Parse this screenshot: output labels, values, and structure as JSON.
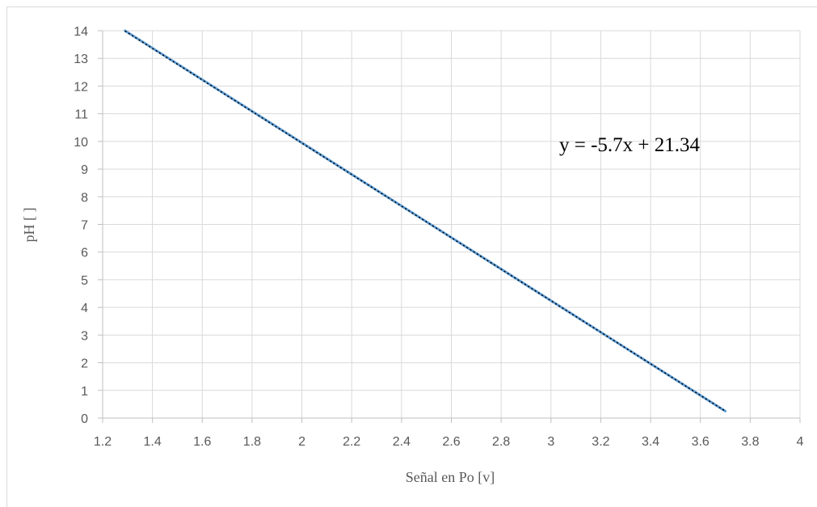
{
  "chart_data": {
    "type": "line",
    "title": "",
    "xlabel": "Señal en Po [v]",
    "ylabel": "pH [ ]",
    "xlim": [
      1.2,
      4
    ],
    "ylim": [
      0,
      14
    ],
    "x_ticks": [
      "1.2",
      "1.4",
      "1.6",
      "1.8",
      "2",
      "2.2",
      "2.4",
      "2.6",
      "2.8",
      "3",
      "3.2",
      "3.4",
      "3.6",
      "3.8",
      "4"
    ],
    "y_ticks": [
      "0",
      "1",
      "2",
      "3",
      "4",
      "5",
      "6",
      "7",
      "8",
      "9",
      "10",
      "11",
      "12",
      "13",
      "14"
    ],
    "grid": true,
    "legend": "none",
    "series": [
      {
        "x": [
          1.29,
          3.7
        ],
        "y": [
          14,
          0.25
        ],
        "color": "#5b9bd5",
        "style": "solid"
      }
    ],
    "trendline": {
      "equation": "y = -5.7x + 21.34",
      "slope": -5.7,
      "intercept": 21.34,
      "color": "#000000",
      "style": "dotted"
    }
  }
}
